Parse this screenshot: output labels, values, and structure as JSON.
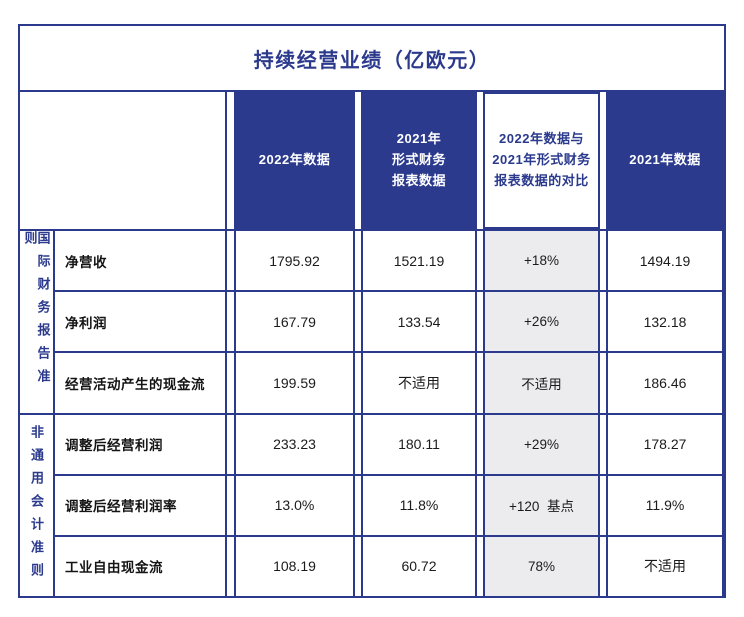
{
  "title": "持续经营业绩（亿欧元）",
  "colors": {
    "primary": "#2b3a8d",
    "compare_bg": "#ececee"
  },
  "headers": {
    "col1": "2022年数据",
    "col2": "2021年\n形式财务\n报表数据",
    "col3": "2022年数据与\n2021年形式财务\n报表数据的对比",
    "col4": "2021年数据"
  },
  "groups": {
    "ifrs": "国际财务报告准则",
    "non_gaap": "非通用会计准则"
  },
  "rows": [
    {
      "label": "净营收",
      "v2022": "1795.92",
      "v2021_proforma": "1521.19",
      "compare": "+18%",
      "v2021": "1494.19"
    },
    {
      "label": "净利润",
      "v2022": "167.79",
      "v2021_proforma": "133.54",
      "compare": "+26%",
      "v2021": "132.18"
    },
    {
      "label": "经营活动产生的现金流",
      "v2022": "199.59",
      "v2021_proforma": "不适用",
      "compare": "不适用",
      "v2021": "186.46"
    },
    {
      "label": "调整后经营利润",
      "v2022": "233.23",
      "v2021_proforma": "180.11",
      "compare": "+29%",
      "v2021": "178.27"
    },
    {
      "label": "调整后经营利润率",
      "v2022": "13.0%",
      "v2021_proforma": "11.8%",
      "compare": "+120  基点",
      "v2021": "11.9%"
    },
    {
      "label": "工业自由现金流",
      "v2022": "108.19",
      "v2021_proforma": "60.72",
      "compare": "78%",
      "v2021": "不适用"
    }
  ],
  "chart_data": {
    "type": "table",
    "title": "持续经营业绩（亿欧元）",
    "column_headers": [
      "2022年数据",
      "2021年形式财务报表数据",
      "2022年数据与2021年形式财务报表数据的对比",
      "2021年数据"
    ],
    "row_groups": [
      {
        "group": "国际财务报告准则",
        "rows": [
          [
            "净营收",
            "1795.92",
            "1521.19",
            "+18%",
            "1494.19"
          ],
          [
            "净利润",
            "167.79",
            "133.54",
            "+26%",
            "132.18"
          ],
          [
            "经营活动产生的现金流",
            "199.59",
            "不适用",
            "不适用",
            "186.46"
          ]
        ]
      },
      {
        "group": "非通用会计准则",
        "rows": [
          [
            "调整后经营利润",
            "233.23",
            "180.11",
            "+29%",
            "178.27"
          ],
          [
            "调整后经营利润率",
            "13.0%",
            "11.8%",
            "+120 基点",
            "11.9%"
          ],
          [
            "工业自由现金流",
            "108.19",
            "60.72",
            "78%",
            "不适用"
          ]
        ]
      }
    ]
  }
}
